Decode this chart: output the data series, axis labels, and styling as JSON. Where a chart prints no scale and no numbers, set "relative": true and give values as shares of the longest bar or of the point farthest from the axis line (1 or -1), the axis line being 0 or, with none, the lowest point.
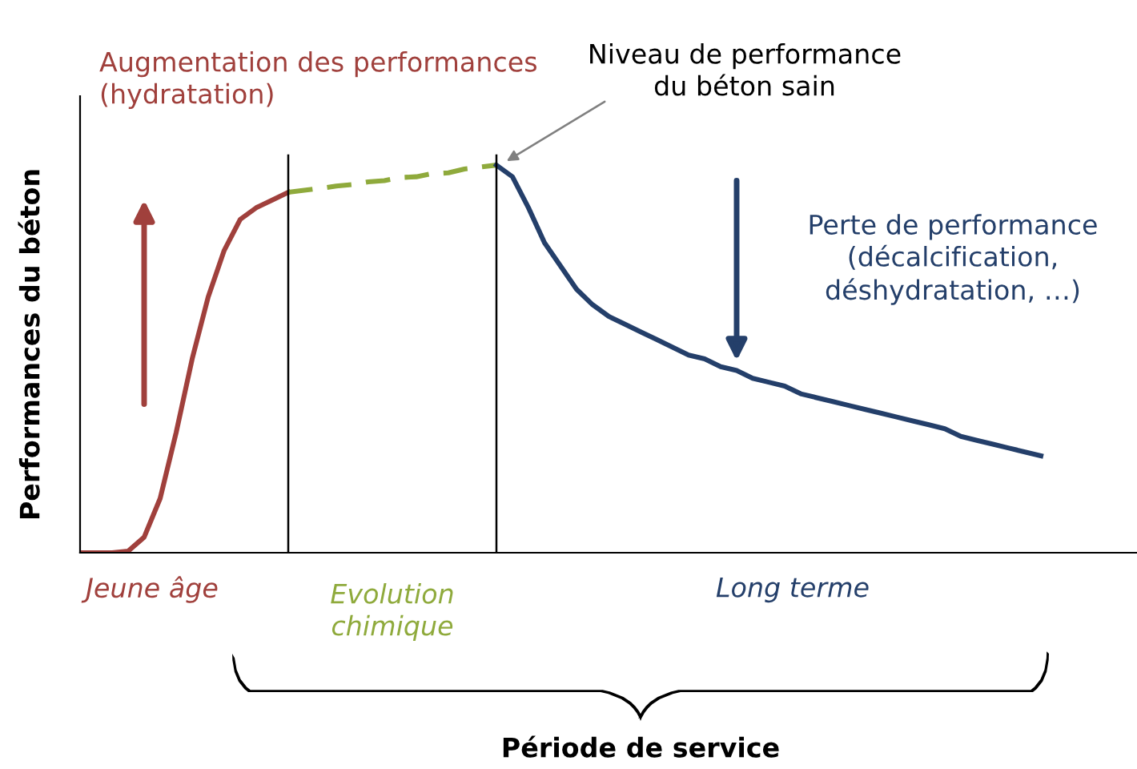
{
  "chart_data": {
    "type": "line",
    "relative": true,
    "ylabel": "Performances du béton",
    "categories": [
      null,
      null,
      null,
      null,
      null,
      null,
      null,
      null,
      null,
      null,
      null,
      null,
      null,
      null,
      null,
      null,
      null,
      null,
      null,
      null,
      null,
      null,
      null,
      null,
      null,
      null,
      null,
      null,
      null,
      null,
      null,
      null,
      null,
      null,
      null,
      null,
      null,
      null,
      null,
      null,
      null,
      null,
      null,
      null,
      null,
      null,
      null,
      null,
      null,
      null,
      null,
      null,
      null,
      null,
      null,
      null,
      null,
      null,
      null,
      null,
      null,
      null,
      null,
      null,
      null,
      null
    ],
    "series": [
      {
        "color": "#a0403c",
        "line_style": "solid",
        "values": [
          0,
          0,
          0,
          0.004,
          0.04,
          0.14,
          0.31,
          0.5,
          0.66,
          0.78,
          0.86,
          0.89,
          0.91,
          0.93,
          null,
          null,
          null,
          null,
          null,
          null,
          null,
          null,
          null,
          null,
          null,
          null,
          null,
          null,
          null,
          null,
          null,
          null,
          null,
          null,
          null,
          null,
          null,
          null,
          null,
          null,
          null,
          null,
          null,
          null,
          null,
          null,
          null,
          null,
          null,
          null,
          null,
          null,
          null,
          null,
          null,
          null,
          null,
          null,
          null,
          null,
          null,
          null,
          null,
          null,
          null,
          null
        ]
      },
      {
        "color": "#8faa3c",
        "line_style": "dashed",
        "values": [
          null,
          null,
          null,
          null,
          null,
          null,
          null,
          null,
          null,
          null,
          null,
          null,
          null,
          0.93,
          0.935,
          0.94,
          0.946,
          0.95,
          0.957,
          0.96,
          0.968,
          0.97,
          0.978,
          0.98,
          0.99,
          0.995,
          1.0,
          null,
          null,
          null,
          null,
          null,
          null,
          null,
          null,
          null,
          null,
          null,
          null,
          null,
          null,
          null,
          null,
          null,
          null,
          null,
          null,
          null,
          null,
          null,
          null,
          null,
          null,
          null,
          null,
          null,
          null,
          null,
          null,
          null,
          null,
          null,
          null,
          null,
          null,
          null
        ]
      },
      {
        "color": "#243f6a",
        "line_style": "solid",
        "values": [
          null,
          null,
          null,
          null,
          null,
          null,
          null,
          null,
          null,
          null,
          null,
          null,
          null,
          null,
          null,
          null,
          null,
          null,
          null,
          null,
          null,
          null,
          null,
          null,
          null,
          null,
          1.0,
          0.97,
          0.89,
          0.8,
          0.74,
          0.68,
          0.64,
          0.61,
          0.59,
          0.57,
          0.55,
          0.53,
          0.51,
          0.5,
          0.48,
          0.47,
          0.45,
          0.44,
          0.43,
          0.41,
          0.4,
          0.39,
          0.38,
          0.37,
          0.36,
          0.35,
          0.34,
          0.33,
          0.32,
          0.3,
          0.29,
          0.28,
          0.27,
          0.26,
          0.25,
          null,
          null,
          null,
          null,
          null
        ]
      }
    ],
    "annotations": [
      "Augmentation des performances\n(hydratation)",
      "Niveau de performance\ndu béton sain",
      "Perte de performance\n(décalcification,\ndéshydratation, …)",
      "Jeune âge",
      "Evolution\nchimique",
      "Long terme",
      "Période de service"
    ],
    "marker": "none"
  }
}
